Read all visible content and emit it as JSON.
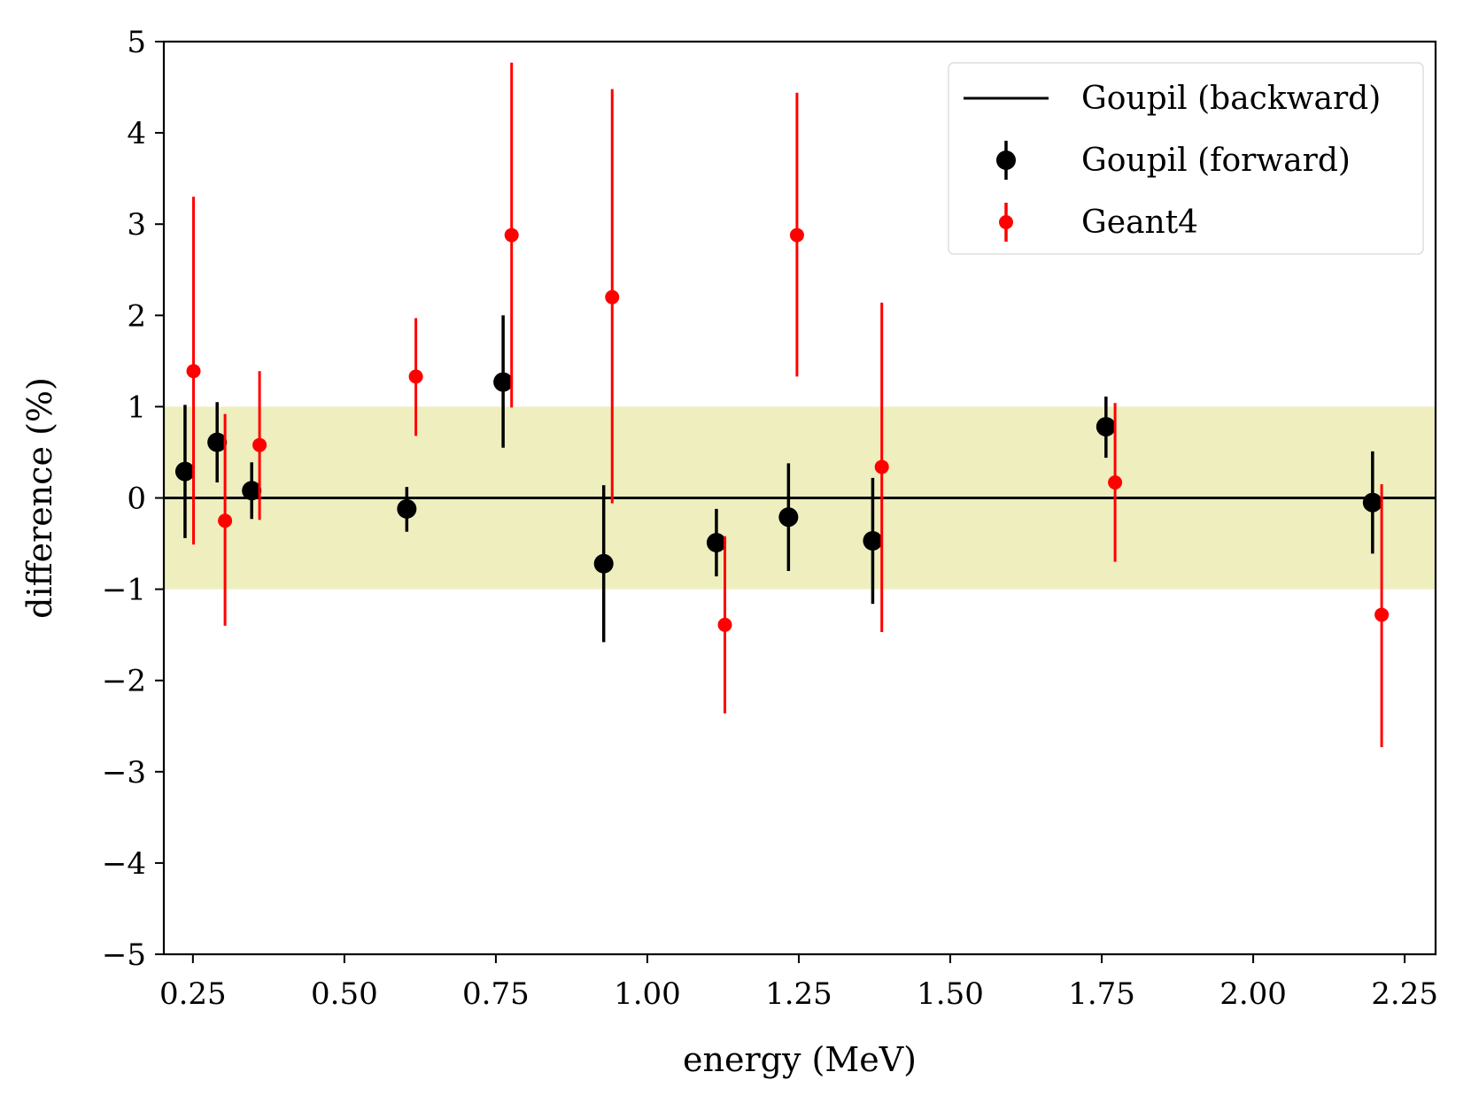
{
  "chart_data": {
    "type": "scatter",
    "title": "",
    "xlabel": "energy (MeV)",
    "ylabel": "difference (%)",
    "xlim": [
      0.202,
      2.301
    ],
    "ylim": [
      -5,
      5
    ],
    "grid": false,
    "xticks": [
      0.25,
      0.5,
      0.75,
      1.0,
      1.25,
      1.5,
      1.75,
      2.0,
      2.25
    ],
    "xtick_labels": [
      "0.25",
      "0.50",
      "0.75",
      "1.00",
      "1.25",
      "1.50",
      "1.75",
      "2.00",
      "2.25"
    ],
    "yticks": [
      -5,
      -4,
      -3,
      -2,
      -1,
      0,
      1,
      2,
      3,
      4,
      5
    ],
    "ytick_labels": [
      "−5",
      "−4",
      "−3",
      "−2",
      "−1",
      "0",
      "1",
      "2",
      "3",
      "4",
      "5"
    ],
    "band": {
      "y_low": -1,
      "y_high": 1,
      "color": "#eeeebf"
    },
    "legend": {
      "position": "top-right",
      "entries": [
        {
          "label": "Goupil (backward)",
          "style": "line",
          "color": "#000000"
        },
        {
          "label": "Goupil (forward)",
          "style": "errorbar-marker-large",
          "color": "#000000"
        },
        {
          "label": "Geant4",
          "style": "errorbar-marker-small",
          "color": "#ff0000"
        }
      ]
    },
    "series": [
      {
        "name": "Goupil (backward)",
        "type": "line",
        "color": "#000000",
        "y": 0
      },
      {
        "name": "Goupil (forward)",
        "type": "errorbar",
        "color": "#000000",
        "marker": "large",
        "points": [
          {
            "x": 0.237,
            "y": 0.29,
            "yerr_low": 0.73,
            "yerr_high": 0.73
          },
          {
            "x": 0.29,
            "y": 0.61,
            "yerr_low": 0.44,
            "yerr_high": 0.44
          },
          {
            "x": 0.347,
            "y": 0.08,
            "yerr_low": 0.31,
            "yerr_high": 0.31
          },
          {
            "x": 0.603,
            "y": -0.12,
            "yerr_low": 0.25,
            "yerr_high": 0.24
          },
          {
            "x": 0.762,
            "y": 1.27,
            "yerr_low": 0.72,
            "yerr_high": 0.73
          },
          {
            "x": 0.928,
            "y": -0.72,
            "yerr_low": 0.86,
            "yerr_high": 0.86
          },
          {
            "x": 1.114,
            "y": -0.49,
            "yerr_low": 0.37,
            "yerr_high": 0.37
          },
          {
            "x": 1.233,
            "y": -0.21,
            "yerr_low": 0.59,
            "yerr_high": 0.59
          },
          {
            "x": 1.372,
            "y": -0.47,
            "yerr_low": 0.69,
            "yerr_high": 0.69
          },
          {
            "x": 1.757,
            "y": 0.78,
            "yerr_low": 0.34,
            "yerr_high": 0.33
          },
          {
            "x": 2.197,
            "y": -0.05,
            "yerr_low": 0.56,
            "yerr_high": 0.56
          }
        ]
      },
      {
        "name": "Geant4",
        "type": "errorbar",
        "color": "#ff0000",
        "marker": "small",
        "points": [
          {
            "x": 0.251,
            "y": 1.39,
            "yerr_low": 1.9,
            "yerr_high": 1.91
          },
          {
            "x": 0.303,
            "y": -0.25,
            "yerr_low": 1.15,
            "yerr_high": 1.17
          },
          {
            "x": 0.36,
            "y": 0.58,
            "yerr_low": 0.82,
            "yerr_high": 0.81
          },
          {
            "x": 0.618,
            "y": 1.33,
            "yerr_low": 0.65,
            "yerr_high": 0.64
          },
          {
            "x": 0.776,
            "y": 2.88,
            "yerr_low": 1.89,
            "yerr_high": 1.89
          },
          {
            "x": 0.942,
            "y": 2.2,
            "yerr_low": 2.26,
            "yerr_high": 2.28
          },
          {
            "x": 1.128,
            "y": -1.39,
            "yerr_low": 0.97,
            "yerr_high": 0.97
          },
          {
            "x": 1.247,
            "y": 2.88,
            "yerr_low": 1.55,
            "yerr_high": 1.56
          },
          {
            "x": 1.387,
            "y": 0.34,
            "yerr_low": 1.81,
            "yerr_high": 1.8
          },
          {
            "x": 1.772,
            "y": 0.17,
            "yerr_low": 0.87,
            "yerr_high": 0.87
          },
          {
            "x": 2.212,
            "y": -1.28,
            "yerr_low": 1.45,
            "yerr_high": 1.43
          }
        ]
      }
    ]
  }
}
